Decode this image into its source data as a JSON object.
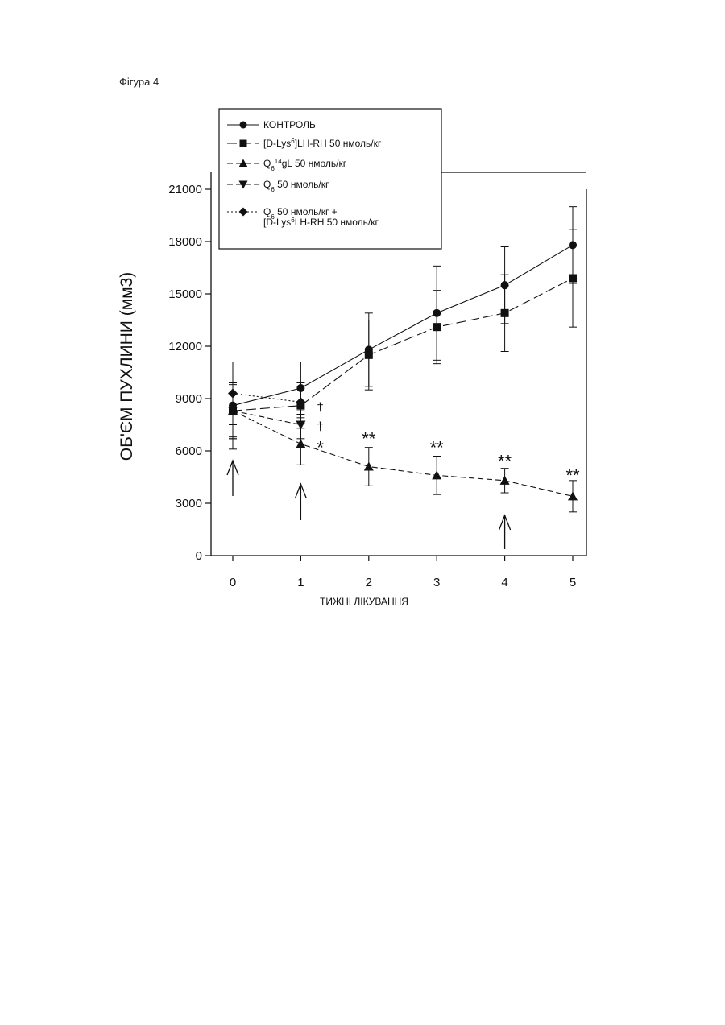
{
  "figure_label": "Фігура 4",
  "chart_data": {
    "type": "line",
    "xlabel": "ТИЖНІ ЛІКУВАННЯ",
    "ylabel": "ОБ'ЄМ ПУХЛИНИ (мм3)",
    "xlim": [
      0,
      5
    ],
    "ylim": [
      0,
      21000
    ],
    "x_ticks": [
      "0",
      "1",
      "2",
      "3",
      "4",
      "5"
    ],
    "y_ticks": [
      "0",
      "3000",
      "6000",
      "9000",
      "12000",
      "15000",
      "18000",
      "21000"
    ],
    "error_bars": true,
    "legend_position": "top-left",
    "series": [
      {
        "name": "КОНТРОЛЬ",
        "marker": "circle",
        "dash": "solid",
        "x": [
          0,
          1,
          2,
          3,
          4,
          5
        ],
        "y": [
          8600,
          9600,
          11800,
          13900,
          15500,
          17800
        ],
        "err": [
          2500,
          1500,
          2100,
          2700,
          2200,
          2200
        ]
      },
      {
        "name": "[D-Lys6]LH-RH 50 нмоль/кг",
        "marker": "square",
        "dash": "longdash",
        "x": [
          0,
          1,
          2,
          3,
          4,
          5
        ],
        "y": [
          8300,
          8600,
          11500,
          13100,
          13900,
          15900
        ],
        "err": [
          1600,
          1300,
          2000,
          2100,
          2200,
          2800
        ]
      },
      {
        "name": "Q6 14gL 50 нмоль/кг",
        "marker": "triangle-up",
        "dash": "dashed",
        "x": [
          0,
          1,
          2,
          3,
          4,
          5
        ],
        "y": [
          8300,
          6400,
          5100,
          4600,
          4300,
          3400
        ],
        "err": [
          1600,
          1200,
          1100,
          1100,
          700,
          900
        ]
      },
      {
        "name": "Q6 50 нмоль/кг",
        "marker": "triangle-down",
        "dash": "dashed",
        "x": [
          0,
          1
        ],
        "y": [
          8300,
          7500
        ],
        "err": [
          1500,
          800
        ]
      },
      {
        "name": "Q6 50 нмоль/кг + [D-Lys6LH-RH 50 нмоль/кг",
        "marker": "diamond",
        "dash": "dotted",
        "x": [
          0,
          1
        ],
        "y": [
          9300,
          8800
        ],
        "err": [
          1800,
          900
        ]
      }
    ],
    "annotations": [
      {
        "text": "†",
        "x": 1,
        "y": 8600
      },
      {
        "text": "†",
        "x": 1,
        "y": 7500
      },
      {
        "text": "*",
        "x": 1,
        "y": 6400
      },
      {
        "text": "**",
        "x": 2,
        "y": 6900
      },
      {
        "text": "**",
        "x": 3,
        "y": 6400
      },
      {
        "text": "**",
        "x": 4,
        "y": 5600
      },
      {
        "text": "**",
        "x": 5,
        "y": 4800
      }
    ],
    "treatment_arrows_at_weeks": [
      0,
      1,
      4
    ]
  },
  "legend": {
    "entries": [
      {
        "marker": "circle",
        "parts": [
          {
            "t": "КОНТРОЛЬ"
          }
        ]
      },
      {
        "marker": "square",
        "parts": [
          {
            "t": "[D-Lys"
          },
          {
            "t": "6",
            "sup": true
          },
          {
            "t": "]LH-RH 50 нмоль/кг"
          }
        ]
      },
      {
        "marker": "triangle-up",
        "parts": [
          {
            "t": "Q"
          },
          {
            "t": "6",
            "sub": true
          },
          {
            "t": "14",
            "sup": true
          },
          {
            "t": "gL 50 нмоль/кг"
          }
        ]
      },
      {
        "marker": "triangle-down",
        "parts": [
          {
            "t": "Q"
          },
          {
            "t": "6",
            "sub": true
          },
          {
            "t": "     50 нмоль/кг"
          }
        ]
      },
      {
        "marker": "diamond",
        "parts": [
          {
            "t": "Q"
          },
          {
            "t": "6",
            "sub": true
          },
          {
            "t": "     50 нмоль/кг +"
          }
        ],
        "line2": [
          {
            "t": "[D-Lys"
          },
          {
            "t": "6",
            "sup": true
          },
          {
            "t": "LH-RH 50 нмоль/кг"
          }
        ]
      }
    ]
  }
}
